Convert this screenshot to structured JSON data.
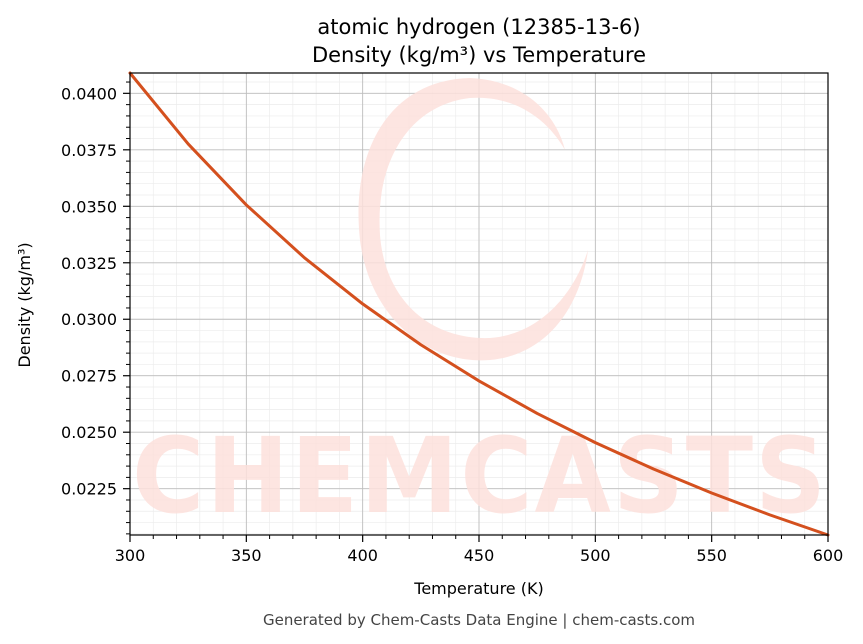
{
  "chart_data": {
    "type": "line",
    "title": "atomic hydrogen (12385-13-6)",
    "subtitle": "Density (kg/m³) vs Temperature",
    "xlabel": "Temperature (K)",
    "ylabel": "Density (kg/m³)",
    "xlim": [
      300,
      600
    ],
    "ylim": [
      0.02045,
      0.0409
    ],
    "x_ticks": [
      300,
      350,
      400,
      450,
      500,
      550,
      600
    ],
    "x_tick_labels": [
      "300",
      "350",
      "400",
      "450",
      "500",
      "550",
      "600"
    ],
    "y_ticks": [
      0.0225,
      0.025,
      0.0275,
      0.03,
      0.0325,
      0.035,
      0.0375,
      0.04
    ],
    "y_tick_labels": [
      "0.0225",
      "0.0250",
      "0.0275",
      "0.0300",
      "0.0325",
      "0.0350",
      "0.0375",
      "0.0400"
    ],
    "grid": true,
    "series": [
      {
        "color": "#d4501e",
        "x": [
          300,
          325,
          350,
          375,
          400,
          425,
          450,
          475,
          500,
          525,
          550,
          575,
          600
        ],
        "y": [
          0.0409,
          0.03776,
          0.03506,
          0.03272,
          0.03068,
          0.02887,
          0.02727,
          0.02583,
          0.02454,
          0.02337,
          0.02231,
          0.02134,
          0.02045
        ]
      }
    ]
  },
  "watermark": {
    "text": "CHEMCASTS",
    "color": "#fde1dc"
  },
  "footer": "Generated by Chem-Casts Data Engine | chem-casts.com"
}
